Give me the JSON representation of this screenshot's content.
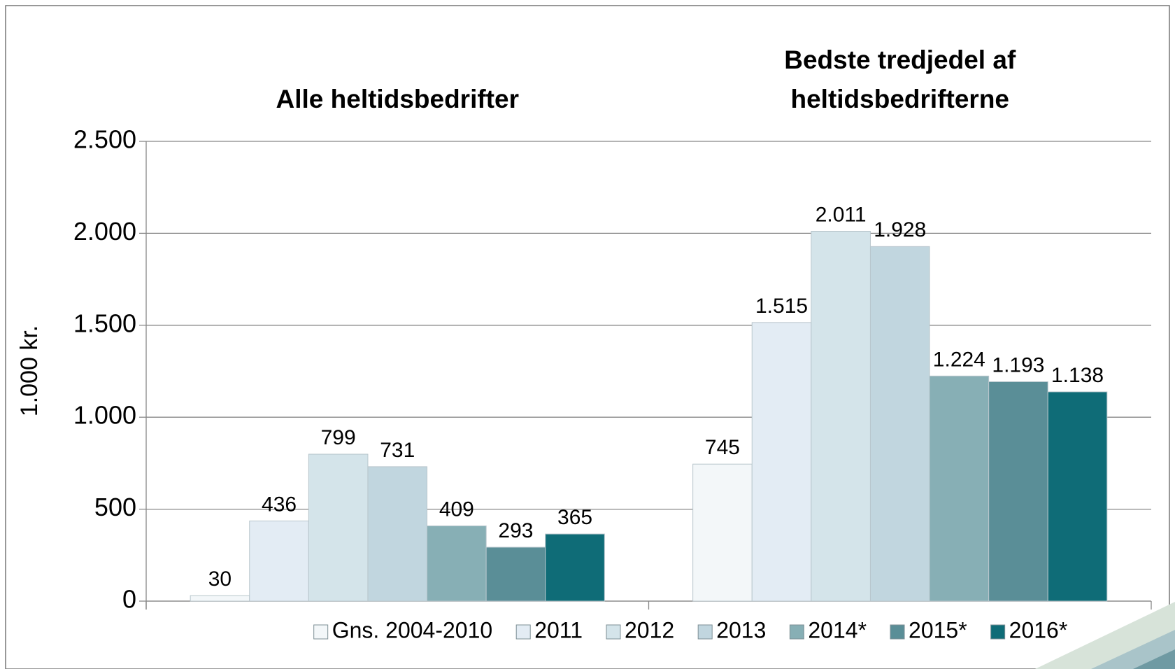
{
  "chart_data": {
    "type": "bar",
    "categories": [
      "Alle heltidsbedrifter",
      "Bedste tredjedel af heltidsbedrifterne"
    ],
    "y_label": "1.000 kr.",
    "series": [
      {
        "name": "Gns. 2004-2010",
        "color": "#f3f7f9",
        "values": [
          30,
          745
        ]
      },
      {
        "name": "2011",
        "color": "#e3ecf4",
        "values": [
          436,
          1515
        ],
        "value_labels": [
          "436",
          "1.515"
        ]
      },
      {
        "name": "2012",
        "color": "#d4e4ea",
        "values": [
          799,
          2011
        ],
        "value_labels": [
          "799",
          "2.011"
        ]
      },
      {
        "name": "2013",
        "color": "#c1d6df",
        "values": [
          731,
          1928
        ],
        "value_labels": [
          "731",
          "1.928"
        ]
      },
      {
        "name": "2014*",
        "color": "#87afb5",
        "values": [
          409,
          1224
        ],
        "value_labels": [
          "409",
          "1.224"
        ]
      },
      {
        "name": "2015*",
        "color": "#5a8e97",
        "values": [
          293,
          1193
        ],
        "value_labels": [
          "293",
          "1.193"
        ]
      },
      {
        "name": "2016*",
        "color": "#0f6c77",
        "values": [
          365,
          1138
        ],
        "value_labels": [
          "365",
          "1.138"
        ]
      }
    ],
    "ylim": [
      0,
      2500
    ],
    "yticks": [
      0,
      500,
      {
        "value": 1000,
        "label": "1.000"
      },
      {
        "value": 1500,
        "label": "1.500"
      },
      {
        "value": 2000,
        "label": "2.000"
      },
      {
        "value": 2500,
        "label": "2.500"
      }
    ],
    "grid": true,
    "legend": "bottom"
  }
}
